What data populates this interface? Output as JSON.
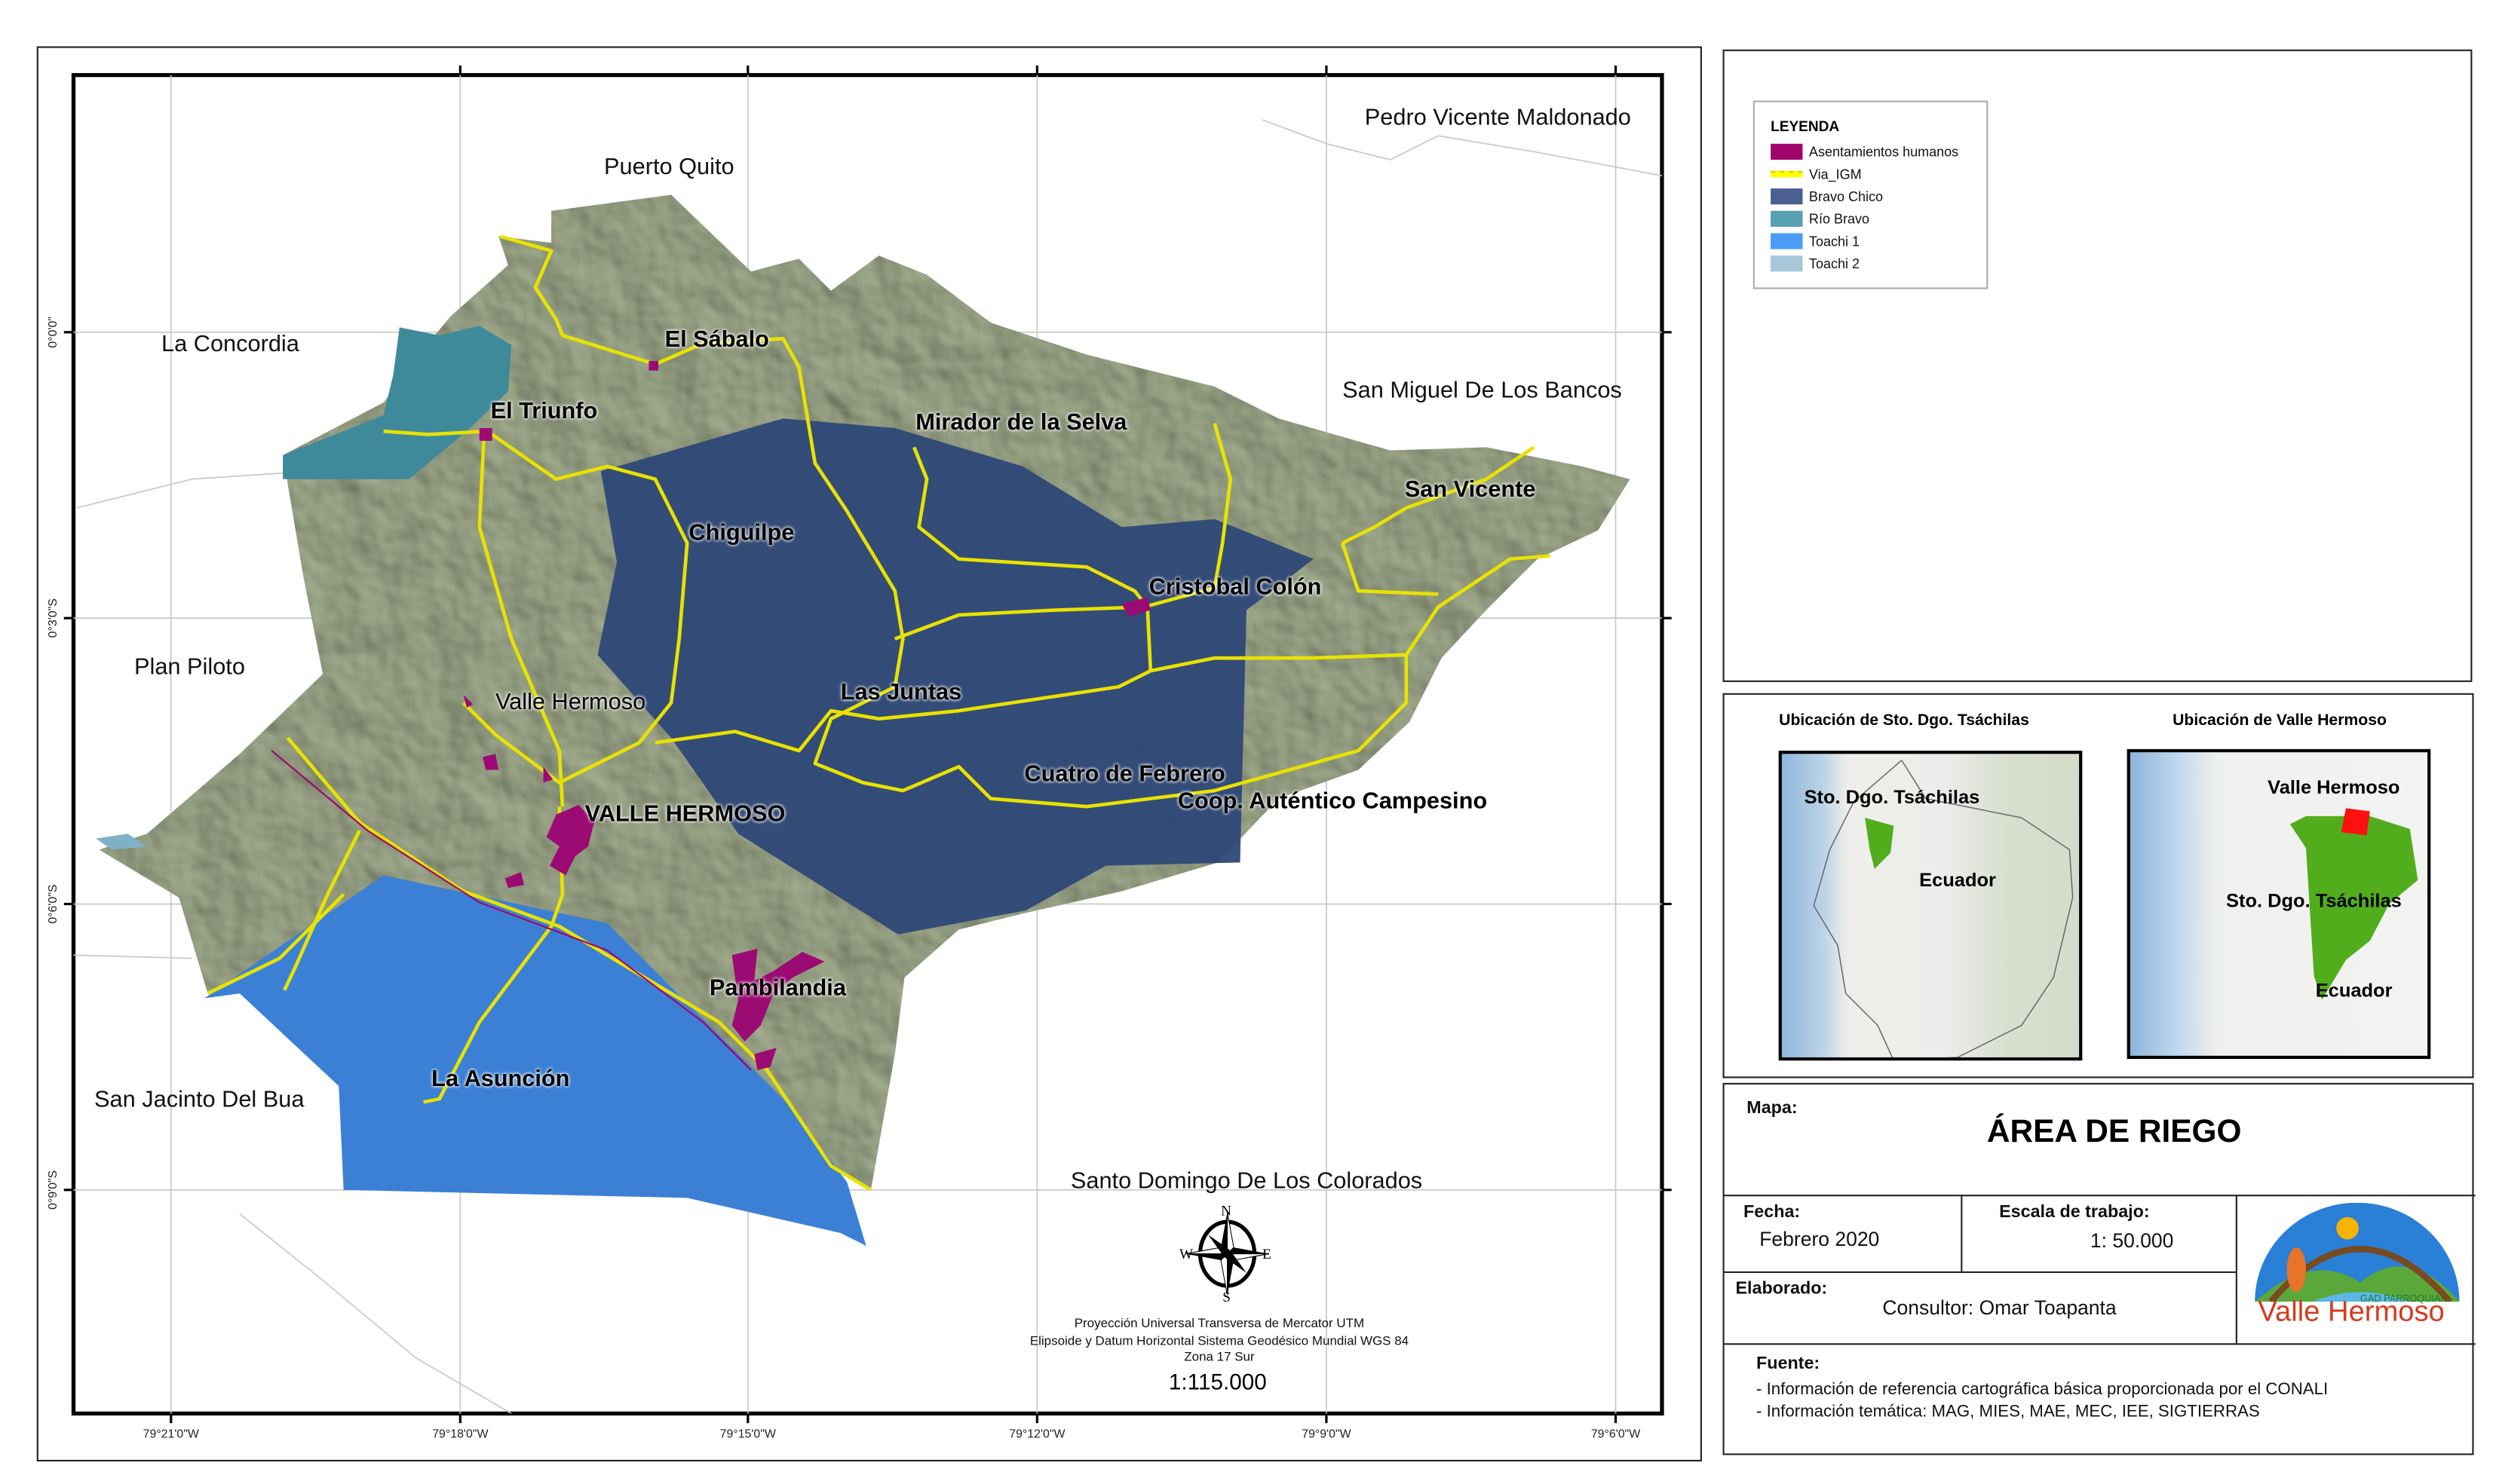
{
  "map": {
    "lat_ticks": [
      "0°0'0\"",
      "0°3'0\"S",
      "0°6'0\"S",
      "0°9'0\"S"
    ],
    "lon_ticks": [
      "79°21'0\"W",
      "79°18'0\"W",
      "79°15'0\"W",
      "79°12'0\"W",
      "79°9'0\"W",
      "79°6'0\"W"
    ],
    "outer_places": [
      "Pedro Vicente Maldonado",
      "Puerto Quito",
      "La Concordia",
      "San Miguel De Los Bancos",
      "Plan Piloto",
      "San Jacinto Del Bua",
      "Santo Domingo De Los Colorados"
    ],
    "inner_places": [
      "El Sábalo",
      "El Triunfo",
      "Mirador de la Selva",
      "San Vicente",
      "Chiguilpe",
      "Cristobal Colón",
      "Valle Hermoso",
      "Las Juntas",
      "Cuatro de Febrero",
      "Coop. Auténtico Campesino",
      "VALLE HERMOSO",
      "Pambilandia",
      "La Asunción"
    ],
    "colors": {
      "parish": "#a8b393",
      "bravo_chico": "#2e4877",
      "rio_bravo": "#3e8a9a",
      "toachi_1": "#3b80d5",
      "toachi_2": "#a4c6d8",
      "roads": "#ffff00",
      "settlements": "#9c0a74"
    },
    "compass": {
      "n": "N",
      "s": "S",
      "e": "E",
      "w": "W"
    },
    "projection": [
      "Proyección Universal Transversa de Mercator UTM",
      "Elipsoide y Datum Horizontal Sistema Geodésico Mundial WGS 84",
      "Zona 17 Sur"
    ],
    "scale": "1:115.000"
  },
  "legend": {
    "title": "LEYENDA",
    "items": [
      {
        "label": "Asentamientos humanos",
        "color": "#a0056e"
      },
      {
        "label": "Via_IGM",
        "color": "#ffff00"
      },
      {
        "label": "Bravo Chico",
        "color": "#4a6092"
      },
      {
        "label": "Río Bravo",
        "color": "#56a0b0"
      },
      {
        "label": "Toachi 1",
        "color": "#4c9bf5"
      },
      {
        "label": "Toachi 2",
        "color": "#a6c8d8"
      }
    ]
  },
  "insets": {
    "left": {
      "title": "Ubicación de Sto. Dgo. Tsáchilas",
      "labels": [
        "Sto. Dgo. Tsáchilas",
        "Ecuador"
      ]
    },
    "right": {
      "title": "Ubicación de Valle Hermoso",
      "labels": [
        "Valle Hermoso",
        "Sto. Dgo. Tsáchilas",
        "Ecuador"
      ]
    }
  },
  "titleblock": {
    "map_label": "Mapa:",
    "title": "ÁREA DE RIEGO",
    "date_label": "Fecha:",
    "date": "Febrero 2020",
    "scale_label": "Escala de trabajo:",
    "scale": "1: 50.000",
    "author_label": "Elaborado:",
    "author": "Consultor: Omar Toapanta",
    "source_label": "Fuente:",
    "sources": [
      "- Información de referencia cartográfica básica proporcionada por el CONALI",
      "- Información temática: MAG, MIES, MAE, MEC, IEE, SIGTIERRAS"
    ],
    "logo": {
      "top": "GAD PARROQUIAL",
      "name": "Valle Hermoso"
    }
  }
}
